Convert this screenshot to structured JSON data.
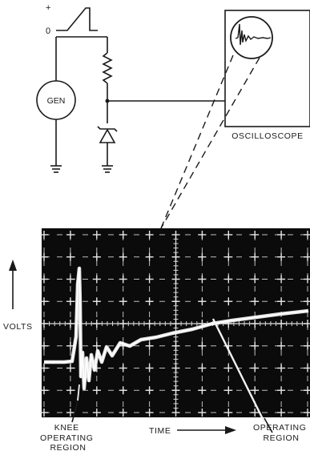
{
  "pulse": {
    "plus_label": "+",
    "zero_label": "0"
  },
  "generator": {
    "label": "GEN"
  },
  "oscilloscope": {
    "label": "OSCILLOSCOPE"
  },
  "scope_screen": {
    "y_axis_label": "VOLTS",
    "time_label": "TIME",
    "knee_label": [
      "KNEE",
      "OPERATING",
      "REGION"
    ],
    "operating_label": [
      "OPERATING",
      "REGION"
    ]
  },
  "colors": {
    "ink": "#1a1a1a",
    "screen_bg": "#0b0b0b",
    "trace": "#f2f2f2"
  }
}
